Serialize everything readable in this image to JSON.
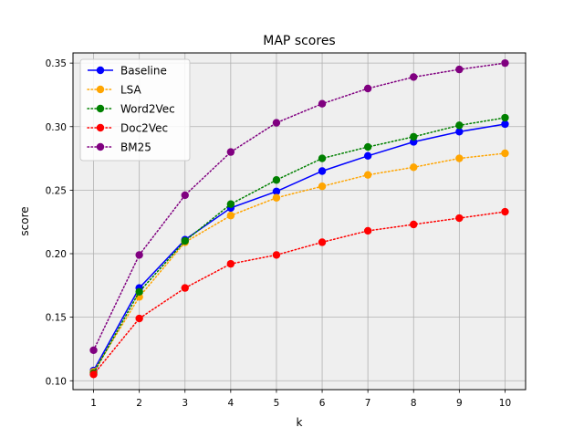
{
  "chart_data": {
    "type": "line",
    "title": "MAP scores",
    "xlabel": "k",
    "ylabel": "score",
    "x": [
      1,
      2,
      3,
      4,
      5,
      6,
      7,
      8,
      9,
      10
    ],
    "xlim": [
      0.55,
      10.45
    ],
    "ylim": [
      0.093,
      0.358
    ],
    "yticks": [
      0.1,
      0.15,
      0.2,
      0.25,
      0.3,
      0.35
    ],
    "ytick_labels": [
      "0.10",
      "0.15",
      "0.20",
      "0.25",
      "0.30",
      "0.35"
    ],
    "grid": true,
    "legend_position": "top-left",
    "plot_background": "#efefef",
    "series": [
      {
        "name": "Baseline",
        "color": "#0000ff",
        "linestyle": "solid",
        "marker": "circle",
        "values": [
          0.108,
          0.173,
          0.211,
          0.236,
          0.249,
          0.265,
          0.277,
          0.288,
          0.296,
          0.302
        ]
      },
      {
        "name": "LSA",
        "color": "#ffa500",
        "linestyle": "dotted",
        "marker": "circle",
        "values": [
          0.107,
          0.166,
          0.209,
          0.23,
          0.244,
          0.253,
          0.262,
          0.268,
          0.275,
          0.279
        ]
      },
      {
        "name": "Word2Vec",
        "color": "#008000",
        "linestyle": "dotted",
        "marker": "circle",
        "values": [
          0.106,
          0.17,
          0.21,
          0.239,
          0.258,
          0.275,
          0.284,
          0.292,
          0.301,
          0.307
        ]
      },
      {
        "name": "Doc2Vec",
        "color": "#ff0000",
        "linestyle": "dotted",
        "marker": "circle",
        "values": [
          0.105,
          0.149,
          0.173,
          0.192,
          0.199,
          0.209,
          0.218,
          0.223,
          0.228,
          0.233
        ]
      },
      {
        "name": "BM25",
        "color": "#800080",
        "linestyle": "dotted",
        "marker": "circle",
        "values": [
          0.124,
          0.199,
          0.246,
          0.28,
          0.303,
          0.318,
          0.33,
          0.339,
          0.345,
          0.35
        ]
      }
    ]
  }
}
